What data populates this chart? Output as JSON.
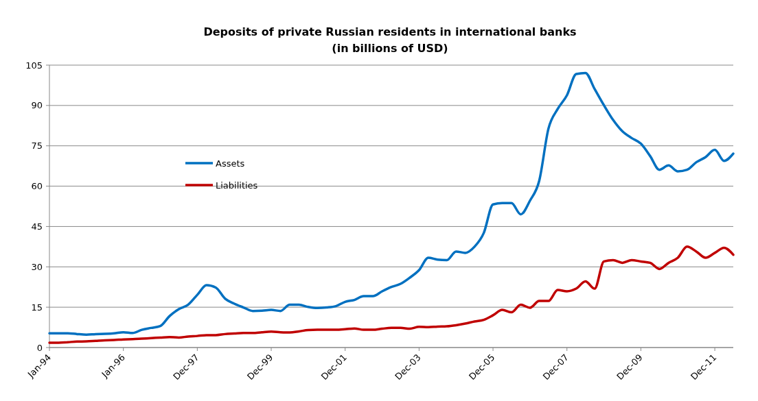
{
  "chart_data": {
    "type": "line",
    "title": "Deposits of private Russian residents in international banks",
    "subtitle": "(in billions of USD)",
    "categories": [
      "Jan-94",
      null,
      null,
      null,
      null,
      null,
      null,
      null,
      "Jan-96",
      null,
      null,
      null,
      null,
      null,
      null,
      null,
      "Dec-97",
      null,
      null,
      null,
      null,
      null,
      null,
      null,
      "Dec-99",
      null,
      null,
      null,
      null,
      null,
      null,
      null,
      "Dec-01",
      null,
      null,
      null,
      null,
      null,
      null,
      null,
      "Dec-03",
      null,
      null,
      null,
      null,
      null,
      null,
      null,
      "Dec-05",
      null,
      null,
      null,
      null,
      null,
      null,
      null,
      "Dec-07",
      null,
      null,
      null,
      null,
      null,
      null,
      null,
      "Dec-09",
      null,
      null,
      null,
      null,
      null,
      null,
      null,
      "Dec-11",
      null,
      null
    ],
    "series": [
      {
        "name": "Assets",
        "color": "#0070c0",
        "values": [
          5.3,
          5.3,
          5.3,
          5.0,
          4.8,
          5.0,
          5.1,
          5.3,
          5.7,
          5.4,
          6.6,
          7.3,
          8.0,
          11.7,
          14.3,
          15.9,
          19.6,
          23.2,
          22.3,
          18.2,
          16.3,
          14.9,
          13.6,
          13.7,
          14.0,
          13.6,
          15.9,
          15.9,
          15.1,
          14.7,
          14.9,
          15.4,
          17.0,
          17.7,
          19.1,
          19.1,
          20.9,
          22.5,
          23.7,
          26.0,
          28.8,
          33.4,
          32.7,
          32.5,
          35.7,
          35.2,
          37.5,
          42.6,
          53.2,
          53.7,
          53.7,
          49.5,
          54.6,
          62.0,
          81.4,
          88.7,
          93.8,
          101.7,
          102.1,
          96.1,
          90.1,
          84.6,
          80.4,
          77.9,
          75.8,
          71.2,
          66.1,
          67.7,
          65.5,
          66.1,
          68.9,
          70.8,
          73.5,
          69.4,
          72.1
        ]
      },
      {
        "name": "Liabilities",
        "color": "#c00000",
        "values": [
          1.8,
          1.8,
          2.0,
          2.2,
          2.3,
          2.5,
          2.7,
          2.8,
          3.0,
          3.1,
          3.3,
          3.5,
          3.7,
          3.9,
          3.7,
          4.1,
          4.3,
          4.6,
          4.6,
          5.0,
          5.2,
          5.4,
          5.4,
          5.7,
          5.9,
          5.7,
          5.6,
          6.0,
          6.5,
          6.6,
          6.6,
          6.6,
          6.8,
          7.1,
          6.6,
          6.6,
          7.0,
          7.3,
          7.3,
          7.0,
          7.7,
          7.6,
          7.8,
          7.9,
          8.3,
          8.9,
          9.7,
          10.3,
          12.0,
          14.0,
          13.1,
          15.9,
          14.8,
          17.3,
          17.3,
          21.4,
          20.9,
          21.9,
          24.6,
          21.9,
          32.0,
          32.5,
          31.5,
          32.5,
          32.0,
          31.5,
          29.2,
          31.5,
          33.4,
          37.5,
          35.7,
          33.4,
          35.2,
          37.1,
          34.5
        ]
      }
    ],
    "ylim": [
      0,
      105
    ],
    "yticks": [
      0,
      15,
      30,
      45,
      60,
      75,
      90,
      105
    ],
    "grid": "y",
    "legend": "left",
    "marker": "none",
    "line_style": "solid"
  }
}
